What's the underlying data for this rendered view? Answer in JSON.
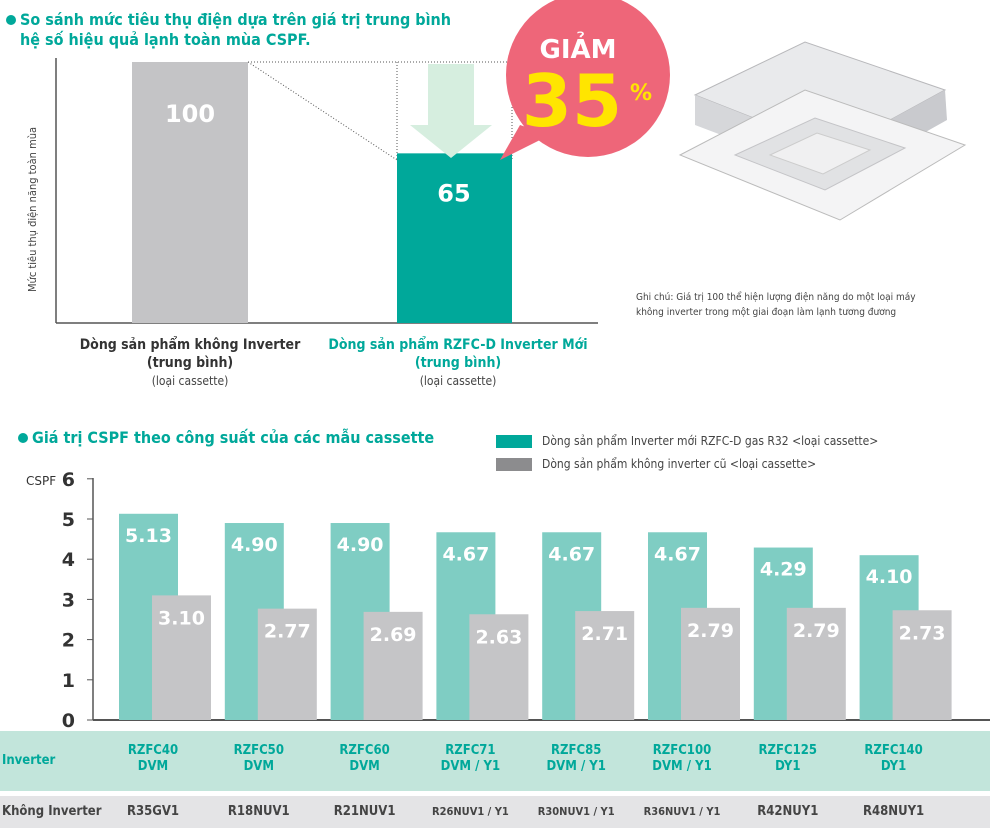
{
  "top": {
    "title_line1": "So sánh mức tiêu thụ điện dựa trên giá trị trung bình",
    "title_line2": "hệ số hiệu quả lạnh toàn mùa CSPF.",
    "ylabel": "Mức tiêu thụ điện năng toàn mùa",
    "badge_word": "GIẢM",
    "badge_value": "35",
    "badge_unit": "%",
    "note_line1": "Ghi chú: Giá trị 100 thể hiện lượng điện năng do một loại máy",
    "note_line2": "không inverter trong một giai đoạn làm lạnh tương đương",
    "bars": [
      {
        "value": 100,
        "label": "100",
        "name1": "Dòng sản phẩm không Inverter",
        "name2": "(trung bình)",
        "name3": "(loại cassette)",
        "color": "#c4c4c6"
      },
      {
        "value": 65,
        "label": "65",
        "name1": "Dòng sản phẩm RZFC-D Inverter Mới",
        "name2": "(trung bình)",
        "name3": "(loại cassette)",
        "color": "#00a89a"
      }
    ]
  },
  "chart_data": {
    "type": "bar",
    "title": "Giá trị CSPF theo công suất của các mẫu cassette",
    "ylabel": "CSPF",
    "ylim": [
      0,
      6
    ],
    "yticks": [
      "0",
      "1",
      "2",
      "3",
      "4",
      "5",
      "6"
    ],
    "legend_placement": "top-right",
    "categories": [
      "RZFC40 DVM / R35GV1",
      "RZFC50 DVM / R18NUV1",
      "RZFC60 DVM / R21NUV1",
      "RZFC71 DVM / Y1 / R26NUV1 / Y1",
      "RZFC85 DVM / Y1 / R30NUV1 / Y1",
      "RZFC100 DVM / Y1 / R36NUV1 / Y1",
      "RZFC125 DY1 / R42NUY1",
      "RZFC140 DY1 / R48NUY1"
    ],
    "series": [
      {
        "name": "Dòng sản phẩm Inverter mới RZFC-D gas R32 <loại cassette>",
        "color": "#7fcdc3",
        "legend_color": "#00a89a",
        "values": [
          5.13,
          4.9,
          4.9,
          4.67,
          4.67,
          4.67,
          4.29,
          4.1
        ],
        "labels": [
          "5.13",
          "4.90",
          "4.90",
          "4.67",
          "4.67",
          "4.67",
          "4.29",
          "4.10"
        ]
      },
      {
        "name": "Dòng sản phẩm không inverter cũ <loại cassette>",
        "color": "#c5c5c7",
        "legend_color": "#8c8c8e",
        "values": [
          3.1,
          2.77,
          2.69,
          2.63,
          2.71,
          2.79,
          2.79,
          2.73
        ],
        "labels": [
          "3.10",
          "2.77",
          "2.69",
          "2.63",
          "2.71",
          "2.79",
          "2.79",
          "2.73"
        ]
      }
    ]
  },
  "table": {
    "inverter_label": "Inverter",
    "noninverter_label": "Không Inverter",
    "inverter": [
      [
        "RZFC40",
        "DVM"
      ],
      [
        "RZFC50",
        "DVM"
      ],
      [
        "RZFC60",
        "DVM"
      ],
      [
        "RZFC71",
        "DVM / Y1"
      ],
      [
        "RZFC85",
        "DVM / Y1"
      ],
      [
        "RZFC100",
        "DVM / Y1"
      ],
      [
        "RZFC125",
        "DY1"
      ],
      [
        "RZFC140",
        "DY1"
      ]
    ],
    "noninverter": [
      "R35GV1",
      "R18NUV1",
      "R21NUV1",
      "R26NUV1 / Y1",
      "R30NUV1 / Y1",
      "R36NUV1 / Y1",
      "R42NUY1",
      "R48NUY1"
    ]
  }
}
